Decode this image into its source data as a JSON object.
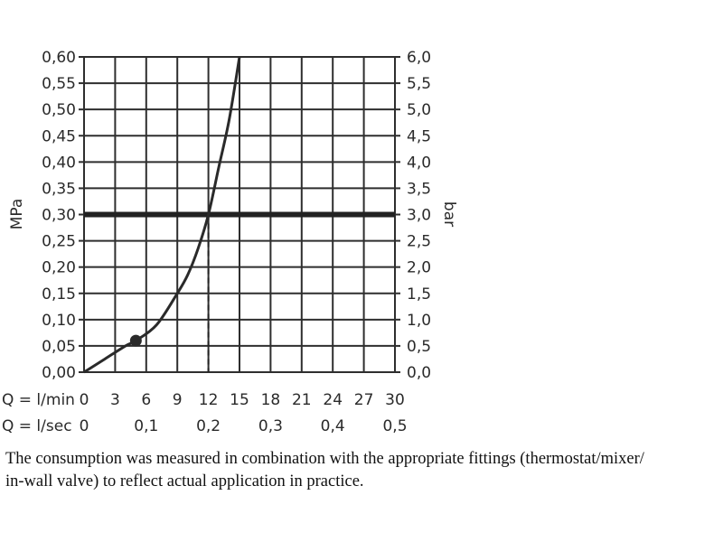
{
  "chart_data": {
    "type": "line",
    "y_left": {
      "label": "MPa",
      "ticks": [
        "0,00",
        "0,05",
        "0,10",
        "0,15",
        "0,20",
        "0,25",
        "0,30",
        "0,35",
        "0,40",
        "0,45",
        "0,50",
        "0,55",
        "0,60"
      ],
      "lim": [
        0,
        0.6
      ]
    },
    "y_right": {
      "label": "bar",
      "ticks": [
        "0,0",
        "0,5",
        "1,0",
        "1,5",
        "2,0",
        "2,5",
        "3,0",
        "3,5",
        "4,0",
        "4,5",
        "5,0",
        "5,5",
        "6,0"
      ],
      "lim": [
        0,
        6
      ]
    },
    "x_lmin": {
      "label": "Q = l/min",
      "ticks": [
        "0",
        "3",
        "6",
        "9",
        "12",
        "15",
        "18",
        "21",
        "24",
        "27",
        "30"
      ],
      "lim": [
        0,
        30
      ]
    },
    "x_lsec": {
      "label": "Q = l/sec",
      "ticks": [
        "0",
        "0,1",
        "0,2",
        "0,3",
        "0,4",
        "0,5"
      ],
      "lim": [
        0,
        0.5
      ]
    },
    "series": [
      {
        "x": [
          0,
          2,
          4,
          5,
          7,
          9,
          10,
          11,
          12,
          13,
          14,
          15
        ],
        "y": [
          0,
          0.025,
          0.05,
          0.06,
          0.09,
          0.15,
          0.185,
          0.235,
          0.3,
          0.39,
          0.48,
          0.6
        ]
      }
    ],
    "reference_line": {
      "y": 0.3
    },
    "intersection": {
      "x": 12,
      "y": 0.3
    },
    "marker": {
      "x": 5,
      "y": 0.06
    },
    "grid": true
  },
  "caption": {
    "line1": "The consumption was measured in combination with the appropriate fittings (thermostat/mixer/",
    "line2": "in-wall valve) to reflect actual application in practice."
  }
}
